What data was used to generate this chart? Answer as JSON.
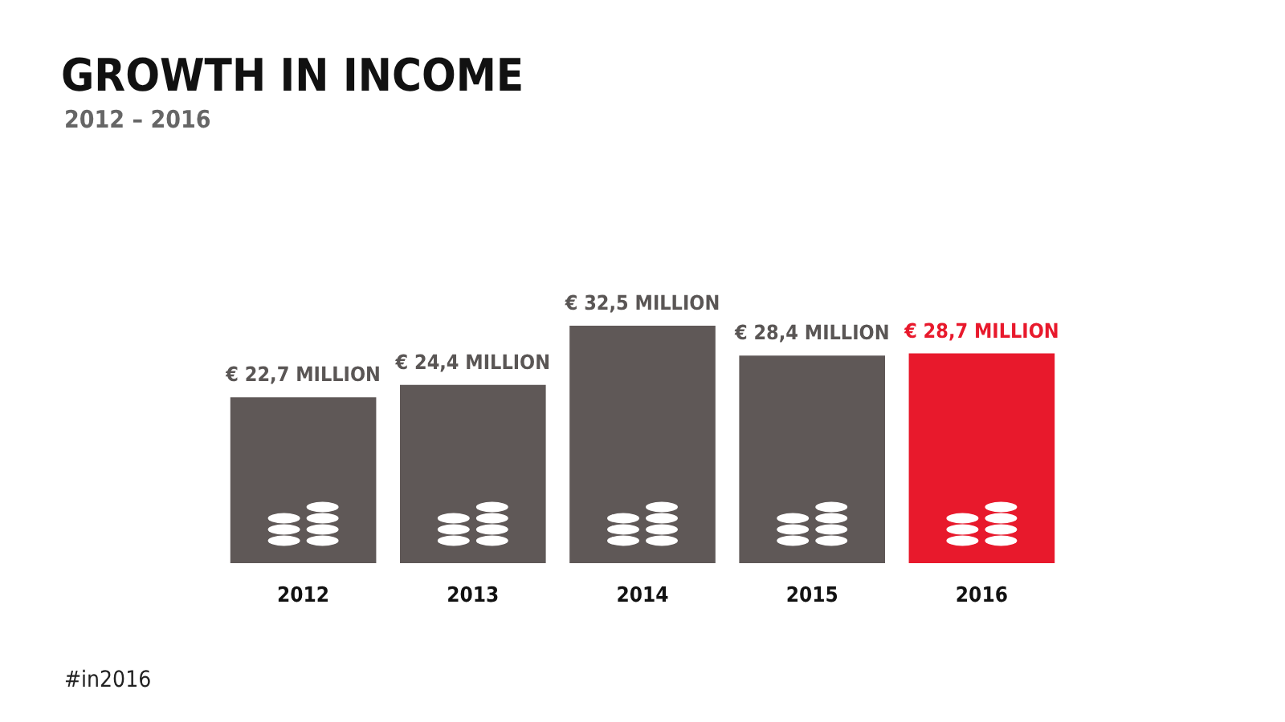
{
  "chart_data": {
    "type": "bar",
    "title": "GROWTH IN INCOME",
    "subtitle": "2012 – 2016",
    "categories": [
      "2012",
      "2013",
      "2014",
      "2015",
      "2016"
    ],
    "values": [
      22.7,
      24.4,
      32.5,
      28.4,
      28.7
    ],
    "colors": [
      "#5f5857",
      "#5f5857",
      "#5f5857",
      "#5f5857",
      "#e8192c"
    ],
    "value_labels": [
      "€ 22,7 MILLION",
      "€ 24,4 MILLION",
      "€ 32,5 MILLION",
      "€ 28,4 MILLION",
      "€ 28,7 MILLION"
    ],
    "annotations": [
      "#in2016"
    ]
  }
}
